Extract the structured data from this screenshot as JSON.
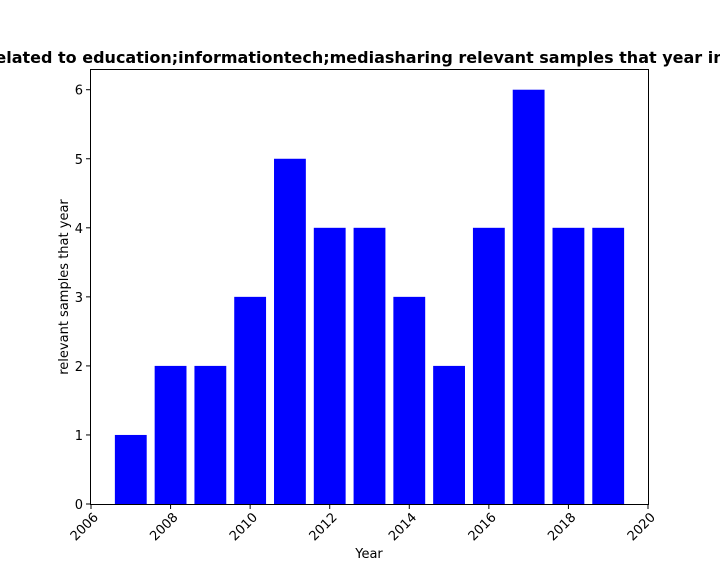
{
  "chart_data": {
    "type": "bar",
    "title": "elated to education;informationtech;mediasharing relevant samples that year in",
    "xlabel": "Year",
    "ylabel": "relevant samples that year",
    "x": [
      2007,
      2008,
      2009,
      2010,
      2011,
      2012,
      2013,
      2014,
      2015,
      2016,
      2017,
      2018,
      2019
    ],
    "values": [
      1,
      2,
      2,
      3,
      5,
      4,
      4,
      3,
      2,
      4,
      6,
      4,
      4
    ],
    "xlim": [
      2006,
      2020
    ],
    "ylim": [
      0,
      6.3
    ],
    "xticks": [
      "2006",
      "2008",
      "2010",
      "2012",
      "2014",
      "2016",
      "2018",
      "2020"
    ],
    "yticks": [
      "0",
      "1",
      "2",
      "3",
      "4",
      "5",
      "6"
    ],
    "grid": false,
    "bar_color": "#0000ff"
  }
}
